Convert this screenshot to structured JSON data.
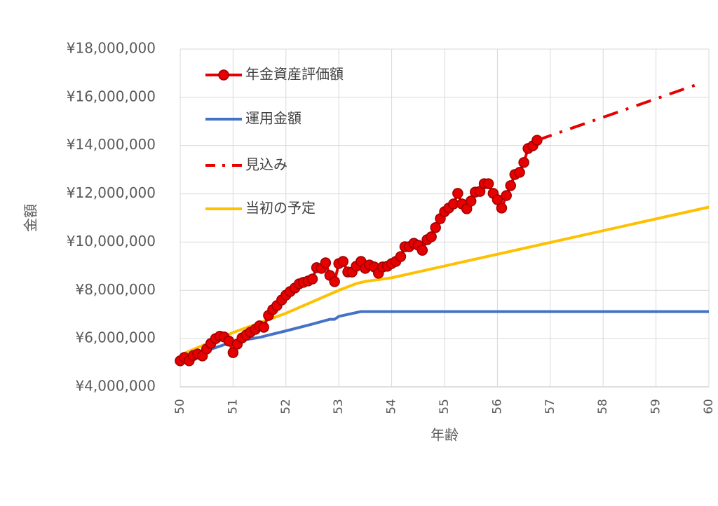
{
  "chart_data": {
    "type": "line",
    "x_label": "年齢",
    "y_label": "金額",
    "xlim": [
      50,
      60
    ],
    "xticks": [
      50,
      51,
      52,
      53,
      54,
      55,
      56,
      57,
      58,
      59,
      60
    ],
    "ylim": [
      4000000,
      18000000
    ],
    "yticks": [
      {
        "value": 4000000,
        "label": "¥4,000,000"
      },
      {
        "value": 6000000,
        "label": "¥6,000,000"
      },
      {
        "value": 8000000,
        "label": "¥8,000,000"
      },
      {
        "value": 10000000,
        "label": "¥10,000,000"
      },
      {
        "value": 12000000,
        "label": "¥12,000,000"
      },
      {
        "value": 14000000,
        "label": "¥14,000,000"
      },
      {
        "value": 16000000,
        "label": "¥16,000,000"
      },
      {
        "value": 18000000,
        "label": "¥18,000,000"
      }
    ],
    "grid": true,
    "legend": "upper left",
    "series": [
      {
        "name": "年金資産評価額",
        "color": "#e60000",
        "marker": true,
        "dash": "solid",
        "x": [
          50,
          50.08,
          50.17,
          50.25,
          50.33,
          50.42,
          50.5,
          50.58,
          50.67,
          50.75,
          50.83,
          50.92,
          51,
          51.08,
          51.17,
          51.25,
          51.33,
          51.42,
          51.5,
          51.58,
          51.67,
          51.75,
          51.83,
          51.92,
          52,
          52.08,
          52.17,
          52.25,
          52.33,
          52.42,
          52.5,
          52.58,
          52.67,
          52.75,
          52.83,
          52.92,
          53,
          53.08,
          53.17,
          53.25,
          53.33,
          53.42,
          53.5,
          53.58,
          53.67,
          53.75,
          53.83,
          53.92,
          54,
          54.08,
          54.17,
          54.25,
          54.33,
          54.42,
          54.5,
          54.58,
          54.67,
          54.75,
          54.83,
          54.92,
          55,
          55.08,
          55.17,
          55.25,
          55.33,
          55.42,
          55.5,
          55.58,
          55.67,
          55.75,
          55.83,
          55.92,
          56,
          56.08,
          56.17,
          56.25,
          56.33,
          56.42,
          56.5,
          56.58,
          56.67,
          56.75
        ],
        "values": [
          5080000,
          5220000,
          5080000,
          5300000,
          5360000,
          5280000,
          5570000,
          5800000,
          6000000,
          6100000,
          6070000,
          5900000,
          5420000,
          5770000,
          6030000,
          6150000,
          6270000,
          6380000,
          6530000,
          6470000,
          6960000,
          7200000,
          7370000,
          7600000,
          7800000,
          7950000,
          8100000,
          8270000,
          8330000,
          8390000,
          8470000,
          8940000,
          8910000,
          9140000,
          8620000,
          8360000,
          9110000,
          9200000,
          8760000,
          8760000,
          9000000,
          9200000,
          8910000,
          9050000,
          8970000,
          8710000,
          8970000,
          9000000,
          9110000,
          9200000,
          9400000,
          9810000,
          9810000,
          9950000,
          9870000,
          9660000,
          10100000,
          10220000,
          10600000,
          10970000,
          11260000,
          11410000,
          11580000,
          12020000,
          11580000,
          11380000,
          11700000,
          12070000,
          12100000,
          12420000,
          12420000,
          12020000,
          11760000,
          11410000,
          11930000,
          12340000,
          12800000,
          12890000,
          13300000,
          13880000,
          13990000,
          14220000
        ]
      },
      {
        "name": "運用金額",
        "color": "#4472c4",
        "marker": false,
        "dash": "solid",
        "x": [
          50,
          50.5,
          51,
          51.5,
          52,
          52.5,
          52.83,
          52.92,
          53,
          53.42,
          60
        ],
        "values": [
          5180000,
          5500000,
          5870000,
          6050000,
          6320000,
          6600000,
          6800000,
          6800000,
          6920000,
          7120000,
          7120000
        ]
      },
      {
        "name": "見込み",
        "color": "#e60000",
        "marker": false,
        "dash": "dashdot",
        "x": [
          56.75,
          59.8
        ],
        "values": [
          14220000,
          16550000
        ]
      },
      {
        "name": "当初の予定",
        "color": "#ffc000",
        "marker": false,
        "dash": "solid",
        "x": [
          50,
          51,
          52,
          53,
          53.33,
          53.5,
          54,
          60
        ],
        "values": [
          5320000,
          6250000,
          7050000,
          8000000,
          8280000,
          8370000,
          8520000,
          11450000
        ]
      }
    ]
  }
}
